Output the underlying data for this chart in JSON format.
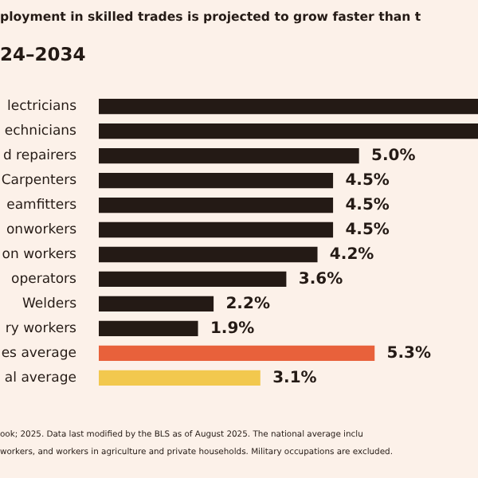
{
  "chart_data": {
    "type": "bar",
    "orientation": "horizontal",
    "title": "ployment in skilled trades is projected to grow faster than t",
    "subtitle": "24–2034",
    "categories": [
      "lectricians",
      "echnicians",
      "d repairers",
      "Carpenters",
      "eamfitters",
      "onworkers",
      "on workers",
      "operators",
      "Welders",
      "ry workers",
      "es average",
      "al average"
    ],
    "values": [
      7.3,
      7.3,
      5.0,
      4.5,
      4.5,
      4.5,
      4.2,
      3.6,
      2.2,
      1.9,
      5.3,
      3.1
    ],
    "value_labels": [
      null,
      null,
      "5.0%",
      "4.5%",
      "4.5%",
      "4.5%",
      "4.2%",
      "3.6%",
      "2.2%",
      "1.9%",
      "5.3%",
      "3.1%"
    ],
    "colors": [
      "#241a15",
      "#241a15",
      "#241a15",
      "#241a15",
      "#241a15",
      "#241a15",
      "#241a15",
      "#241a15",
      "#241a15",
      "#241a15",
      "#e8613b",
      "#f2c84e"
    ],
    "xlim": [
      0,
      7.3
    ],
    "tick_labels": "y",
    "legend": false,
    "annotations": [
      "ook; 2025. Data last modified by the BLS as of August 2025. The national average inclu",
      "workers, and workers in agriculture and private households. Military occupations are excluded."
    ]
  }
}
